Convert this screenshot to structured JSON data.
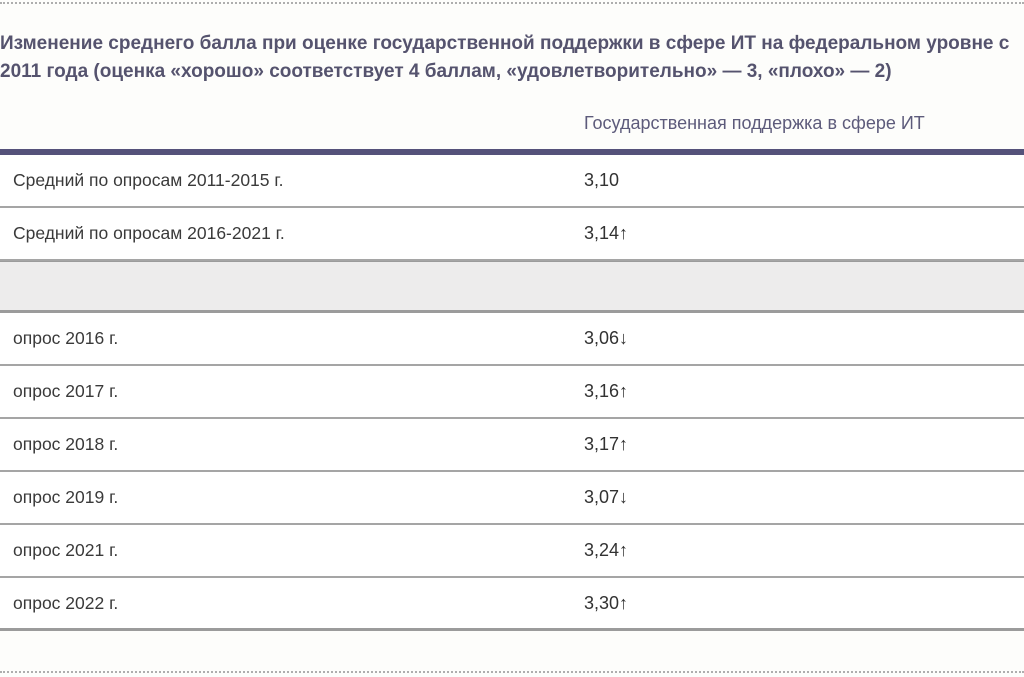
{
  "page": {
    "title": "Изменение среднего балла при оценке государственной поддержки в сфере ИТ на федеральном уровне с 2011 года (оценка «хорошо» соответствует 4 баллам, «удовлетворительно» — 3, «плохо» — 2)"
  },
  "table": {
    "column_header": "Государственная поддержка в сфере ИТ",
    "rows": [
      {
        "label": "Средний по опросам 2011-2015 г.",
        "value": "3,10"
      },
      {
        "label": "Средний по опросам 2016-2021 г.",
        "value": "3,14↑"
      },
      {
        "label": "опрос 2016 г.",
        "value": "3,06↓"
      },
      {
        "label": "опрос 2017 г.",
        "value": "3,16↑"
      },
      {
        "label": "опрос 2018 г.",
        "value": "3,17↑"
      },
      {
        "label": "опрос 2019 г.",
        "value": "3,07↓"
      },
      {
        "label": "опрос 2021 г.",
        "value": "3,24↑"
      },
      {
        "label": "опрос 2022 г.",
        "value": "3,30↑"
      }
    ]
  },
  "colors": {
    "title_text": "#55536e",
    "header_text": "#5d5b7b",
    "header_rule": "#55527a",
    "row_text": "#3a3a3a",
    "row_border": "#a5a5a5",
    "band_background": "#edecec",
    "dotted_divider": "#aeaeae"
  },
  "chart_data": {
    "type": "table",
    "title": "Изменение среднего балла при оценке государственной поддержки в сфере ИТ на федеральном уровне с 2011 года (оценка «хорошо» соответствует 4 баллам, «удовлетворительно» — 3, «плохо» — 2)",
    "column_header": "Государственная поддержка в сфере ИТ",
    "categories": [
      "Средний по опросам 2011-2015 г.",
      "Средний по опросам 2016-2021 г.",
      "опрос 2016 г.",
      "опрос 2017 г.",
      "опрос 2018 г.",
      "опрос 2019 г.",
      "опрос 2021 г.",
      "опрос 2022 г."
    ],
    "values": [
      3.1,
      3.14,
      3.06,
      3.16,
      3.17,
      3.07,
      3.24,
      3.3
    ],
    "trends": [
      "",
      "up",
      "down",
      "up",
      "up",
      "down",
      "up",
      "up"
    ]
  }
}
